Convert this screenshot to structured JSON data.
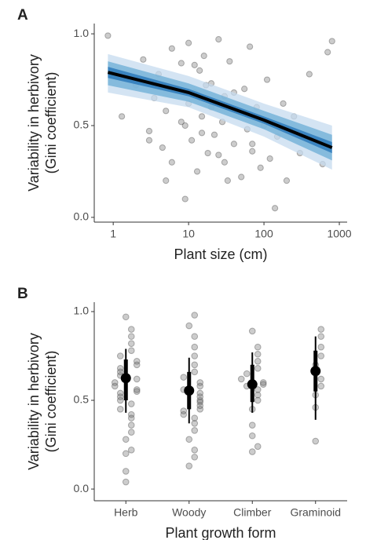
{
  "chart_data": [
    {
      "type": "scatter",
      "panel_label": "A",
      "ylabel": [
        "Variability in herbivory",
        "(Gini coefficient)"
      ],
      "xlabel": "Plant size (cm)",
      "log_x": true,
      "xlim": [
        0.56,
        1270
      ],
      "xticks": [
        1,
        10,
        100,
        1000
      ],
      "ylim": [
        -0.026,
        1.056
      ],
      "yticks": [
        {
          "value": 0,
          "label": "0.0"
        },
        0.5,
        {
          "value": 1,
          "label": "1.0"
        }
      ],
      "point_color": "#555555",
      "x": [
        0.85,
        1.3,
        2,
        2.5,
        3,
        3.5,
        4,
        4.5,
        5,
        6,
        6,
        7,
        8,
        9,
        10,
        10,
        11,
        12,
        13,
        14,
        15,
        16,
        18,
        20,
        20,
        22,
        25,
        28,
        30,
        30,
        35,
        40,
        45,
        50,
        55,
        60,
        65,
        70,
        80,
        90,
        100,
        110,
        120,
        150,
        180,
        200,
        250,
        300,
        400,
        600,
        700,
        800,
        3,
        5,
        8,
        12,
        15,
        25,
        40,
        60,
        9,
        17,
        33,
        70,
        140
      ],
      "y": [
        0.99,
        0.55,
        0.72,
        0.86,
        0.47,
        0.65,
        0.78,
        0.38,
        0.58,
        0.92,
        0.3,
        0.7,
        0.84,
        0.5,
        0.62,
        0.95,
        0.42,
        0.68,
        0.25,
        0.8,
        0.55,
        0.88,
        0.35,
        0.6,
        0.73,
        0.45,
        0.97,
        0.52,
        0.3,
        0.66,
        0.85,
        0.4,
        0.58,
        0.22,
        0.7,
        0.48,
        0.93,
        0.36,
        0.6,
        0.27,
        0.5,
        0.75,
        0.32,
        0.44,
        0.62,
        0.2,
        0.55,
        0.35,
        0.78,
        0.29,
        0.9,
        0.96,
        0.42,
        0.2,
        0.52,
        0.83,
        0.46,
        0.34,
        0.68,
        0.56,
        0.1,
        0.72,
        0.2,
        0.4,
        0.05
      ],
      "fit": {
        "color": "#000000",
        "x": [
          0.85,
          10,
          100,
          800
        ],
        "y": [
          0.79,
          0.68,
          0.53,
          0.38
        ]
      },
      "bands": [
        {
          "color": "#c6dbef",
          "lower": [
            0.68,
            0.6,
            0.44,
            0.26
          ],
          "upper": [
            0.89,
            0.77,
            0.62,
            0.5
          ]
        },
        {
          "color": "#6baed6",
          "lower": [
            0.72,
            0.63,
            0.48,
            0.31
          ],
          "upper": [
            0.85,
            0.73,
            0.58,
            0.45
          ]
        },
        {
          "color": "#2171b5",
          "lower": [
            0.76,
            0.66,
            0.51,
            0.35
          ],
          "upper": [
            0.82,
            0.7,
            0.55,
            0.41
          ]
        }
      ]
    },
    {
      "type": "swarm",
      "panel_label": "B",
      "ylabel": [
        "Variability in herbivory",
        "(Gini coefficient)"
      ],
      "xlabel": "Plant growth form",
      "ylim": [
        -0.066,
        1.053
      ],
      "yticks": [
        {
          "value": 0,
          "label": "0.0"
        },
        0.5,
        {
          "value": 1,
          "label": "1.0"
        }
      ],
      "point_color": "#555555",
      "categories": [
        "Herb",
        "Woody",
        "Climber",
        "Graminoid"
      ],
      "groups": [
        [
          0.04,
          0.1,
          0.2,
          0.22,
          0.28,
          0.32,
          0.36,
          0.4,
          0.42,
          0.45,
          0.48,
          0.5,
          0.52,
          0.54,
          0.55,
          0.56,
          0.58,
          0.6,
          0.62,
          0.64,
          0.66,
          0.68,
          0.7,
          0.72,
          0.75,
          0.78,
          0.82,
          0.86,
          0.9,
          0.97
        ],
        [
          0.13,
          0.18,
          0.22,
          0.28,
          0.33,
          0.37,
          0.4,
          0.42,
          0.44,
          0.45,
          0.47,
          0.49,
          0.5,
          0.52,
          0.54,
          0.56,
          0.58,
          0.6,
          0.63,
          0.66,
          0.7,
          0.75,
          0.8,
          0.86,
          0.92,
          0.98
        ],
        [
          0.21,
          0.24,
          0.3,
          0.36,
          0.45,
          0.5,
          0.53,
          0.56,
          0.58,
          0.59,
          0.6,
          0.62,
          0.65,
          0.68,
          0.72,
          0.76,
          0.8,
          0.89
        ],
        [
          0.27,
          0.46,
          0.53,
          0.58,
          0.62,
          0.7,
          0.75,
          0.8,
          0.86,
          0.9
        ]
      ],
      "means": [
        0.625,
        0.555,
        0.59,
        0.665
      ],
      "inner": [
        [
          0.5,
          0.73
        ],
        [
          0.45,
          0.66
        ],
        [
          0.49,
          0.7
        ],
        [
          0.55,
          0.78
        ]
      ],
      "outer": [
        [
          0.43,
          0.79
        ],
        [
          0.37,
          0.74
        ],
        [
          0.43,
          0.77
        ],
        [
          0.39,
          0.86
        ]
      ]
    }
  ]
}
